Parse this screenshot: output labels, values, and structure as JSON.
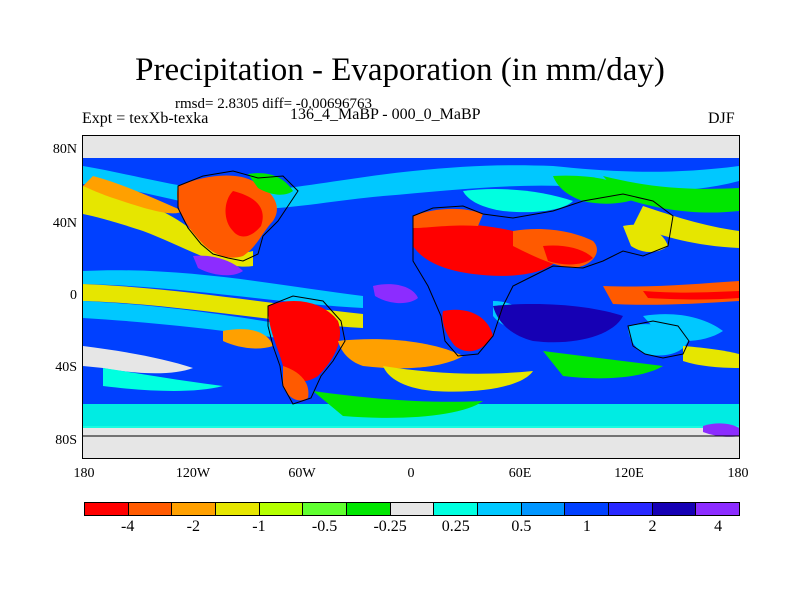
{
  "title": "Precipitation - Evaporation (in mm/day)",
  "stats": "rmsd= 2.8305 diff= -0.00696763",
  "left_label": "Expt = texXb-texka",
  "center_label": "136_4_MaBP - 000_0_MaBP",
  "right_label": "DJF",
  "map": {
    "y_ticks": [
      "80N",
      "40N",
      "0",
      "40S",
      "80S"
    ],
    "x_ticks": [
      "180",
      "120W",
      "60W",
      "0",
      "60E",
      "120E",
      "180"
    ]
  },
  "colorbar": {
    "colors": [
      "#ff0000",
      "#ff5a00",
      "#ffa000",
      "#e6e600",
      "#b4ff00",
      "#60ff30",
      "#00e600",
      "#e6e6e6",
      "#00ffe0",
      "#00c8ff",
      "#0096ff",
      "#0040ff",
      "#2828ff",
      "#1600b4",
      "#8c2cff"
    ],
    "labels": [
      "-4",
      "-2",
      "-1",
      "-0.5",
      "-0.25",
      "0.25",
      "0.5",
      "1",
      "2",
      "4"
    ]
  }
}
